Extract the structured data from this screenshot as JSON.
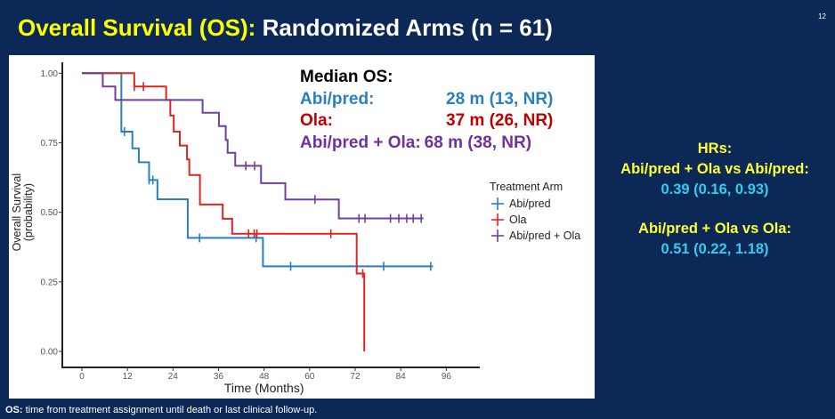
{
  "slide": {
    "title_highlight": "Overall Survival (OS):",
    "title_rest": "Randomized Arms (n = 61)",
    "slide_number": "12",
    "footnote_label": "OS:",
    "footnote_text": " time from treatment assignment until death or last clinical follow-up."
  },
  "median_os": {
    "heading": "Median OS:",
    "rows": [
      {
        "label": "Abi/pred:",
        "value": "28 m (13, NR)",
        "color": "#2a7fc1"
      },
      {
        "label": "Ola:",
        "value": "37 m (26, NR)",
        "color": "#c00000"
      },
      {
        "label": "Abi/pred + Ola:",
        "value": "68 m (38, NR)",
        "color": "#7030a0"
      }
    ]
  },
  "hrs": {
    "heading": "HRs:",
    "comparisons": [
      {
        "label": "Abi/pred + Ola vs Abi/pred:",
        "value": "0.39 (0.16, 0.93)"
      },
      {
        "label": "Abi/pred + Ola vs Ola:",
        "value": "0.51 (0.22, 1.18)"
      }
    ]
  },
  "chart_data": {
    "type": "line",
    "subtype": "kaplan-meier step",
    "xlabel": "Time (Months)",
    "ylabel": "Overall Survival (probability)",
    "ylabel_lines": [
      "Overall Survival",
      "(probability)"
    ],
    "xticks": [
      "0",
      "12",
      "24",
      "36",
      "48",
      "60",
      "72",
      "84",
      "96"
    ],
    "yticks": [
      "0.00",
      "0.25",
      "0.50",
      "0.75",
      "1.00"
    ],
    "xlim": [
      -4,
      106
    ],
    "ylim": [
      0,
      1
    ],
    "grid": false,
    "legend": {
      "title": "Treatment Arm",
      "placement": "right"
    },
    "series": [
      {
        "name": "Abi/pred",
        "color": "#2a7fc1",
        "steps": [
          [
            10.4,
            0.79
          ],
          [
            13.3,
            0.73
          ],
          [
            15,
            0.68
          ],
          [
            17.7,
            0.616
          ],
          [
            19.9,
            0.547
          ],
          [
            27.9,
            0.408
          ],
          [
            47.7,
            0.306
          ]
        ],
        "end": 92.5,
        "censored": [
          11.2,
          17.7,
          18.7,
          31,
          45.9,
          55,
          79.5,
          91.9
        ]
      },
      {
        "name": "Ola",
        "color": "#e02424",
        "steps": [
          [
            13.8,
            0.952
          ],
          [
            22.2,
            0.904
          ],
          [
            23.3,
            0.848
          ],
          [
            24.2,
            0.79
          ],
          [
            25.8,
            0.74
          ],
          [
            27.7,
            0.69
          ],
          [
            28.3,
            0.634
          ],
          [
            31.1,
            0.528
          ],
          [
            37.1,
            0.477
          ],
          [
            39.6,
            0.423
          ],
          [
            72.4,
            0.28
          ],
          [
            74.4,
            0
          ]
        ],
        "end": 74.4,
        "censored": [
          13.8,
          16.2,
          43.9,
          45.4,
          46.1,
          65.6,
          74
        ]
      },
      {
        "name": "Abi/pred + Ola",
        "color": "#7040a0",
        "steps": [
          [
            5.5,
            0.952
          ],
          [
            8.8,
            0.904
          ],
          [
            31.8,
            0.858
          ],
          [
            36.1,
            0.81
          ],
          [
            37.9,
            0.76
          ],
          [
            38.4,
            0.714
          ],
          [
            40.4,
            0.667
          ],
          [
            47.2,
            0.605
          ],
          [
            53.6,
            0.546
          ],
          [
            67.7,
            0.478
          ]
        ],
        "end": 90,
        "censored": [
          43.2,
          45.5,
          61.4,
          73,
          74.6,
          81.3,
          83.5,
          85.6,
          87.3,
          89.4
        ]
      }
    ]
  }
}
